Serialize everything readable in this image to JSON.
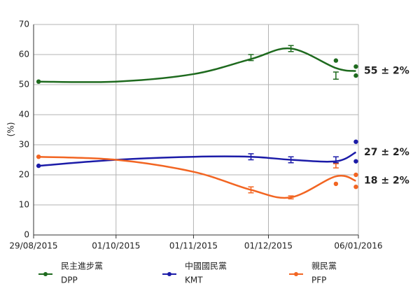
{
  "chart_data": {
    "type": "line",
    "y_label": "(%)",
    "xlim": [
      "2015-08-29",
      "2016-01-06"
    ],
    "xticks": [
      {
        "value": "2015-08-29",
        "label": "29/08/2015"
      },
      {
        "value": "2015-10-01",
        "label": "01/10/2015"
      },
      {
        "value": "2015-11-01",
        "label": "01/11/2015"
      },
      {
        "value": "2015-12-01",
        "label": "01/12/2015"
      },
      {
        "value": "2016-01-06",
        "label": "06/01/2016"
      }
    ],
    "ylim": [
      0,
      70
    ],
    "yticks": [
      0,
      10,
      20,
      30,
      40,
      50,
      60,
      70
    ],
    "grid": true,
    "legend": "bottom",
    "series": [
      {
        "name": "民主進步黨",
        "short_name": "DPP",
        "color": "#1e6a1e",
        "end_label": "55 ± 2%",
        "trend": {
          "x": [
            "2015-08-31",
            "2015-10-01",
            "2015-11-01",
            "2015-11-24",
            "2015-12-10",
            "2015-12-28",
            "2016-01-05"
          ],
          "values": [
            51,
            51,
            53.5,
            58.5,
            62,
            55.5,
            54.5
          ]
        },
        "polls": {
          "x": [
            "2015-08-31",
            "2015-11-24",
            "2015-12-10",
            "2015-12-28",
            "2015-12-28",
            "2016-01-05",
            "2016-01-05"
          ],
          "values": [
            51,
            59,
            62,
            53,
            58,
            56,
            53
          ],
          "errors": [
            null,
            1,
            1,
            1.2,
            null,
            null,
            null
          ]
        }
      },
      {
        "name": "中國國民黨",
        "short_name": "KMT",
        "color": "#1b1ba8",
        "end_label": "27 ± 2%",
        "trend": {
          "x": [
            "2015-08-31",
            "2015-10-01",
            "2015-11-01",
            "2015-11-24",
            "2015-12-10",
            "2015-12-28",
            "2016-01-05"
          ],
          "values": [
            23,
            25,
            26,
            26,
            25,
            24.5,
            27.5
          ]
        },
        "polls": {
          "x": [
            "2015-08-31",
            "2015-11-24",
            "2015-12-10",
            "2015-12-28",
            "2016-01-05",
            "2016-01-05"
          ],
          "values": [
            23,
            26,
            25,
            25,
            31,
            24.5
          ],
          "errors": [
            null,
            1,
            1,
            1,
            null,
            null
          ]
        }
      },
      {
        "name": "親民黨",
        "short_name": "PFP",
        "color": "#f26522",
        "end_label": "18 ± 2%",
        "trend": {
          "x": [
            "2015-08-31",
            "2015-10-01",
            "2015-11-01",
            "2015-11-24",
            "2015-12-10",
            "2015-12-28",
            "2016-01-05"
          ],
          "values": [
            26,
            25,
            21,
            15,
            12.5,
            19.5,
            18
          ]
        },
        "polls": {
          "x": [
            "2015-08-31",
            "2015-11-24",
            "2015-12-10",
            "2015-12-28",
            "2015-12-28",
            "2016-01-05",
            "2016-01-05"
          ],
          "values": [
            26,
            15,
            12.5,
            23,
            17,
            20,
            16
          ],
          "errors": [
            null,
            1,
            0.5,
            0.7,
            null,
            null,
            null
          ]
        }
      }
    ]
  }
}
